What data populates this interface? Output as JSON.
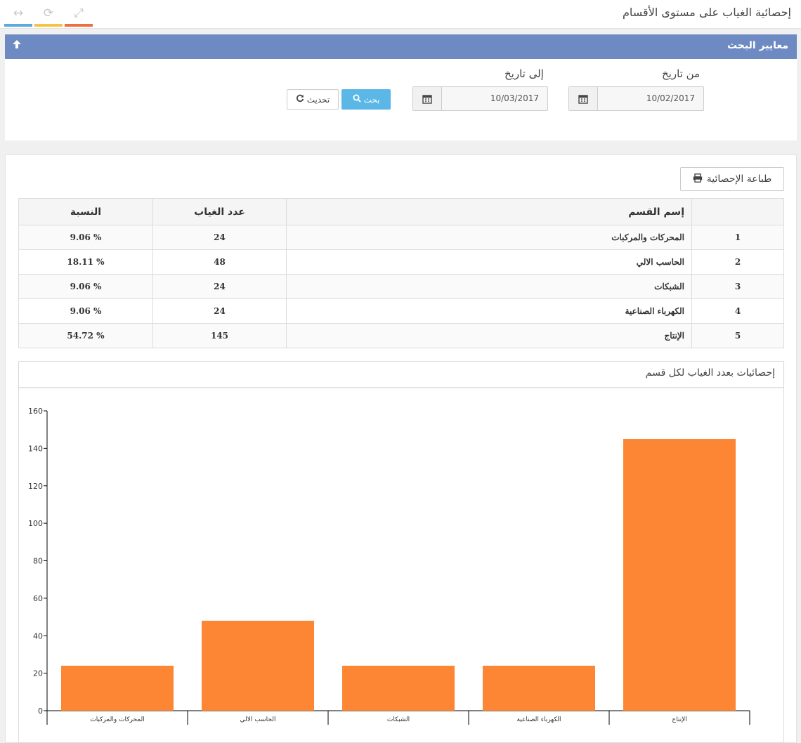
{
  "window": {
    "title": "إحصائية الغياب على مستوى الأقسام",
    "toolbar_icons": [
      {
        "icon": "expand-horizontal-icon",
        "glyph": "↔",
        "color": "#5aa9e0"
      },
      {
        "icon": "refresh-icon",
        "glyph": "⟳",
        "color": "#f6c343"
      },
      {
        "icon": "fullscreen-icon",
        "glyph": "⤢",
        "color": "#ef6d3f"
      }
    ]
  },
  "search_panel": {
    "title": "معايير البحث",
    "collapse_icon": "arrow-up-icon",
    "from_label": "من تاريخ",
    "from_value": "10/02/2017",
    "to_label": "إلى تاريخ",
    "to_value": "10/03/2017",
    "search_button": "بحث",
    "refresh_button": "تحديث"
  },
  "print_button": "طباعة الإحصائية",
  "table": {
    "headers": {
      "name": "إسم القسم",
      "count": "عدد الغياب",
      "percent": "النسبة"
    },
    "rows": [
      {
        "index": "1",
        "name": "المحركات والمركبات",
        "count": "24",
        "percent": "9.06 %"
      },
      {
        "index": "2",
        "name": "الحاسب الالي",
        "count": "48",
        "percent": "18.11 %"
      },
      {
        "index": "3",
        "name": "الشبكات",
        "count": "24",
        "percent": "9.06 %"
      },
      {
        "index": "4",
        "name": "الكهرباء الصناعية",
        "count": "24",
        "percent": "9.06 %"
      },
      {
        "index": "5",
        "name": "الإنتاج",
        "count": "145",
        "percent": "54.72 %"
      }
    ]
  },
  "chart_panel": {
    "title": "إحصائيات بعدد الغياب لكل قسم"
  },
  "chart_data": {
    "type": "bar",
    "categories": [
      "المحركات والمركبات",
      "الحاسب الالي",
      "الشبكات",
      "الكهرباء الصناعية",
      "الإنتاج"
    ],
    "values": [
      24,
      48,
      24,
      24,
      145
    ],
    "ylim": [
      0,
      160
    ],
    "yticks": [
      0,
      20,
      40,
      60,
      80,
      100,
      120,
      140,
      160
    ],
    "bar_color": "#fd8634",
    "grid": false
  },
  "colors": {
    "header_blue": "#6e8ac3",
    "search_button": "#5bb7e6",
    "bar": "#fd8634"
  }
}
